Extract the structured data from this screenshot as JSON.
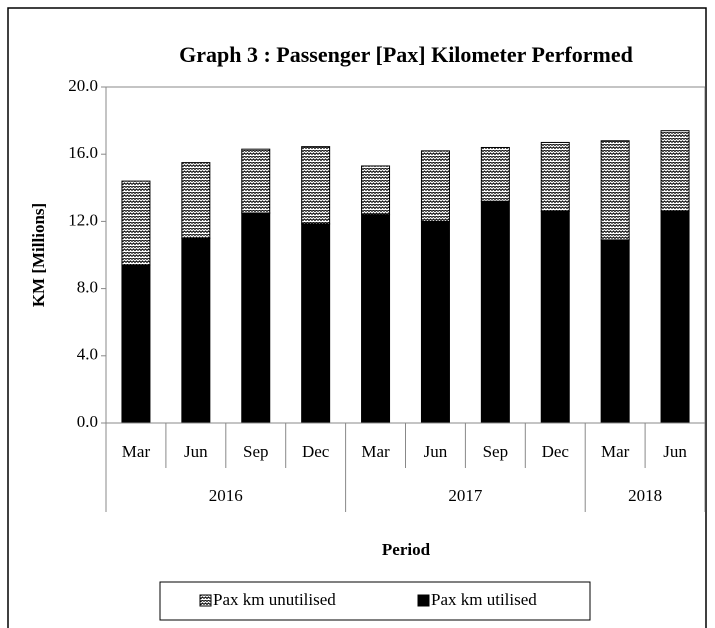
{
  "chart_data": {
    "type": "stacked_bar",
    "title": "Graph 3 : Passenger [Pax] Kilometer Performed",
    "y_label": "KM  [Millions]",
    "x_label": "Period",
    "categories": [
      "Mar",
      "Jun",
      "Sep",
      "Dec",
      "Mar",
      "Jun",
      "Sep",
      "Dec",
      "Mar",
      "Jun"
    ],
    "groups": [
      {
        "label": "2016",
        "count": 4
      },
      {
        "label": "2017",
        "count": 4
      },
      {
        "label": "2018",
        "count": 2
      }
    ],
    "series": [
      {
        "name": "Pax km unutilised",
        "color": "#ffffff",
        "pattern": "zigzag",
        "values": [
          5.0,
          4.5,
          3.8,
          4.6,
          2.9,
          4.2,
          3.2,
          4.1,
          5.9,
          4.8
        ]
      },
      {
        "name": "Pax km utilised",
        "color": "#000000",
        "values": [
          9.4,
          11.0,
          12.5,
          11.85,
          12.4,
          12.0,
          13.2,
          12.6,
          10.9,
          12.6
        ]
      }
    ],
    "ylim": [
      0,
      20
    ],
    "yticks": [
      {
        "value": 0,
        "label": "0.0"
      },
      {
        "value": 4,
        "label": "4.0"
      },
      {
        "value": 8,
        "label": "8.0"
      },
      {
        "value": 12,
        "label": "12.0"
      },
      {
        "value": 16,
        "label": "16.0"
      },
      {
        "value": 20,
        "label": "20.0"
      }
    ],
    "legend": "bottom"
  }
}
